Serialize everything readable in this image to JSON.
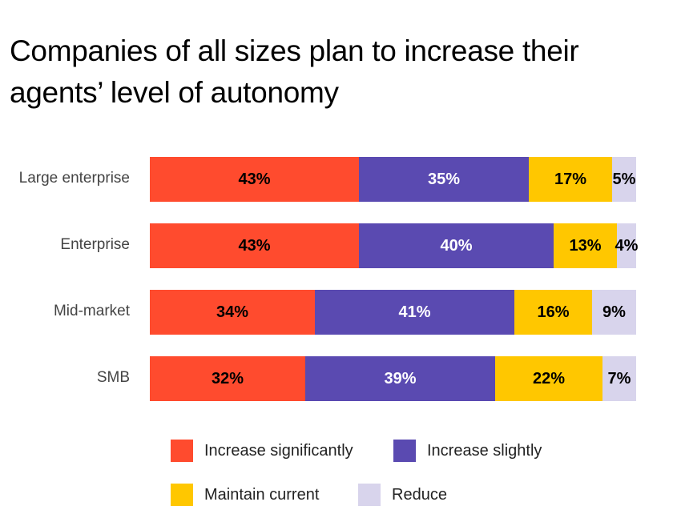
{
  "chart_data": {
    "type": "bar",
    "orientation": "horizontal",
    "stacked": true,
    "title": "Companies of all sizes plan to increase their agents’ level of autonomy",
    "categories": [
      "Large enterprise",
      "Enterprise",
      "Mid-market",
      "SMB"
    ],
    "series": [
      {
        "name": "Increase significantly",
        "color": "#FF4B2E",
        "text_color": "#000000",
        "values": [
          43,
          43,
          34,
          32
        ]
      },
      {
        "name": "Increase slightly",
        "color": "#5A4AB1",
        "text_color": "#FFFFFF",
        "values": [
          35,
          40,
          41,
          39
        ]
      },
      {
        "name": "Maintain current",
        "color": "#FFC700",
        "text_color": "#000000",
        "values": [
          17,
          13,
          16,
          22
        ]
      },
      {
        "name": "Reduce",
        "color": "#D8D4EC",
        "text_color": "#000000",
        "values": [
          5,
          4,
          9,
          7
        ]
      }
    ],
    "value_suffix": "%",
    "xlim": [
      0,
      100
    ],
    "grid": false,
    "legend": "bottom"
  }
}
